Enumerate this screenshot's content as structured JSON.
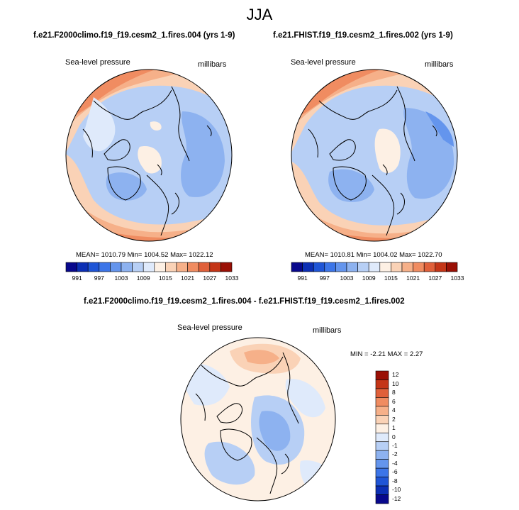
{
  "title": "JJA",
  "panels": [
    {
      "title": "f.e21.F2000climo.f19_f19.cesm2_1.fires.004 (yrs 1-9)",
      "left_label": "Sea-level pressure",
      "right_label": "millibars",
      "stats": "MEAN= 1010.79  Min= 1004.52  Max= 1022.12",
      "mean": 1010.79,
      "min": 1004.52,
      "max": 1022.12
    },
    {
      "title": "f.e21.FHIST.f19_f19.cesm2_1.fires.002 (yrs 1-9)",
      "left_label": "Sea-level pressure",
      "right_label": "millibars",
      "stats": "MEAN= 1010.81  Min= 1004.02  Max= 1022.70",
      "mean": 1010.81,
      "min": 1004.02,
      "max": 1022.7
    }
  ],
  "colorbar_abs": {
    "colors": [
      "#08088c",
      "#0c2fb4",
      "#1f55d6",
      "#3c75e8",
      "#6495ed",
      "#8db2f0",
      "#b7cff5",
      "#dfeafb",
      "#fdf0e4",
      "#fad2b6",
      "#f6b089",
      "#f08c61",
      "#e0603a",
      "#c43517",
      "#9a1005"
    ],
    "labels": [
      "991",
      "997",
      "1003",
      "1009",
      "1015",
      "1021",
      "1027",
      "1033"
    ]
  },
  "diff": {
    "title": "f.e21.F2000climo.f19_f19.cesm2_1.fires.004 - f.e21.FHIST.f19_f19.cesm2_1.fires.002",
    "left_label": "Sea-level pressure",
    "right_label": "millibars",
    "stats": "MIN =  -2.21 MAX =   2.27",
    "min": -2.21,
    "max": 2.27
  },
  "colorbar_diff": {
    "colors": [
      "#9a1005",
      "#c43517",
      "#e0603a",
      "#f08c61",
      "#f6b089",
      "#fad2b6",
      "#fdf0e4",
      "#dfeafb",
      "#b7cff5",
      "#8db2f0",
      "#6495ed",
      "#3c75e8",
      "#1f55d6",
      "#0c2fb4",
      "#08088c"
    ],
    "labels": [
      "12",
      "10",
      "8",
      "6",
      "4",
      "2",
      "1",
      "0",
      "-1",
      "-2",
      "-4",
      "-6",
      "-8",
      "-10",
      "-12"
    ]
  }
}
